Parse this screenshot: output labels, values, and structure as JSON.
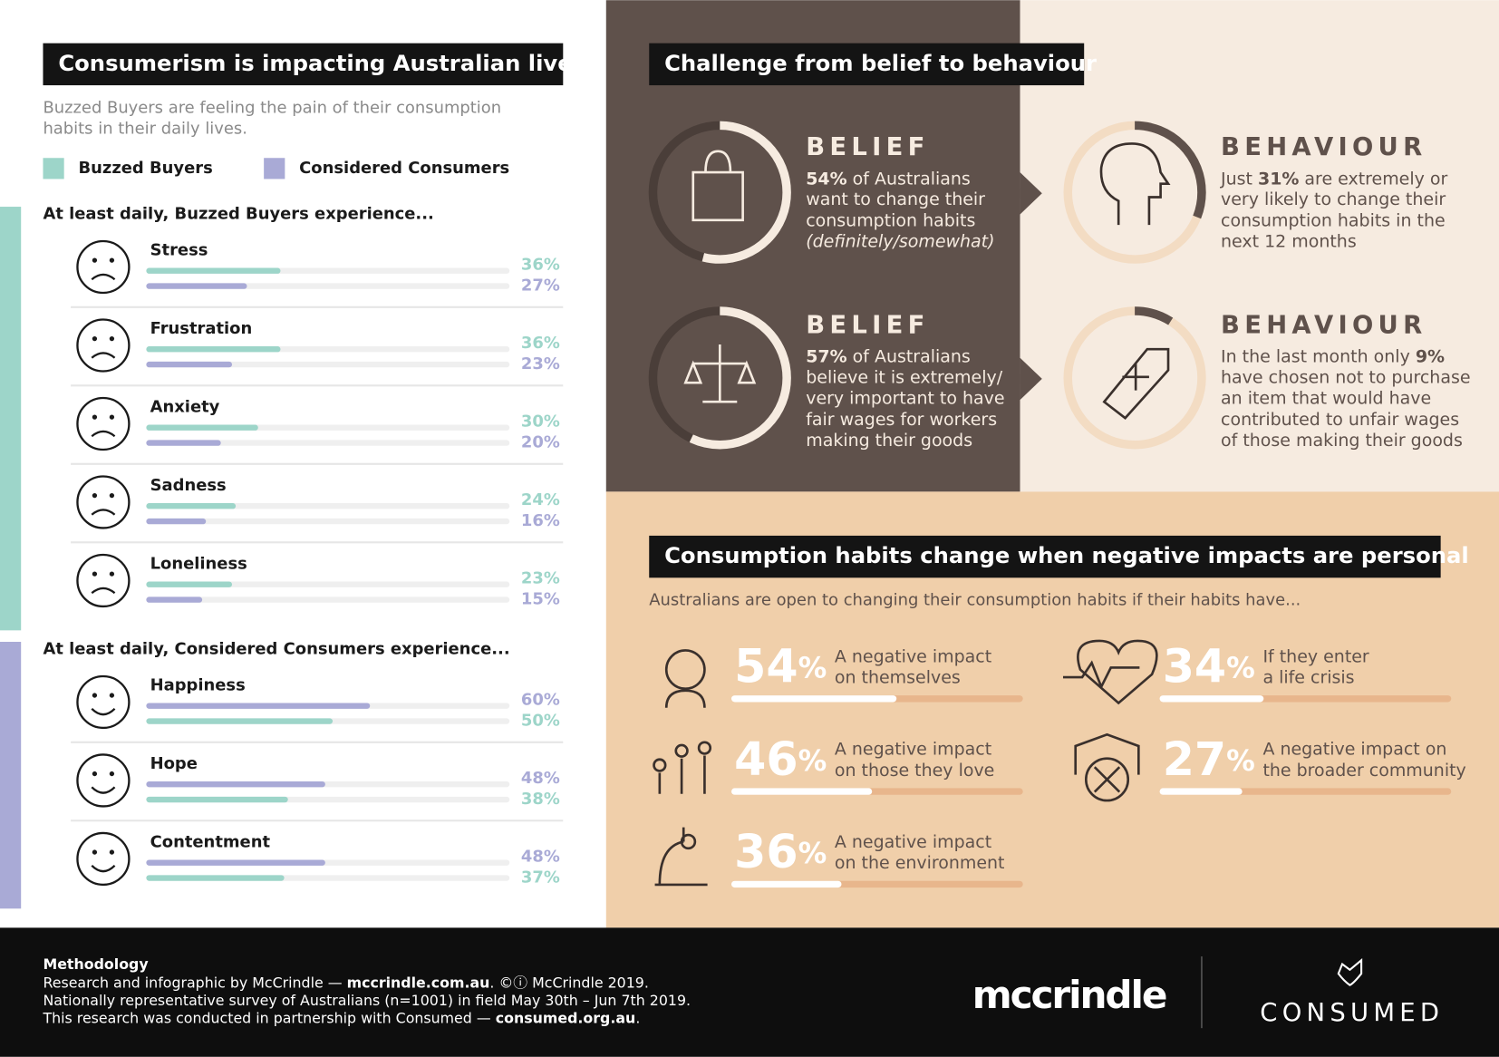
{
  "left": {
    "title": "Consumerism is impacting Australian lives",
    "subtitle": [
      "Buzzed Buyers are feeling the pain of their consumption",
      "habits in their daily lives."
    ],
    "legend": [
      {
        "name": "Buzzed Buyers",
        "color": "#9dd5c9"
      },
      {
        "name": "Considered Consumers",
        "color": "#a9aad6"
      }
    ],
    "sections": [
      {
        "heading": "At least daily, Buzzed Buyers experience...",
        "colors": [
          "#9dd5c9",
          "#a9aad6"
        ],
        "rows": [
          {
            "label": "Stress",
            "bars": [
              {
                "value": 36,
                "label": "36%"
              },
              {
                "value": 27,
                "label": "27%"
              }
            ]
          },
          {
            "label": "Frustration",
            "bars": [
              {
                "value": 36,
                "label": "36%"
              },
              {
                "value": 23,
                "label": "23%"
              }
            ]
          },
          {
            "label": "Anxiety",
            "bars": [
              {
                "value": 30,
                "label": "30%"
              },
              {
                "value": 20,
                "label": "20%"
              }
            ]
          },
          {
            "label": "Sadness",
            "bars": [
              {
                "value": 24,
                "label": "24%"
              },
              {
                "value": 16,
                "label": "16%"
              }
            ]
          },
          {
            "label": "Loneliness",
            "bars": [
              {
                "value": 23,
                "label": "23%"
              },
              {
                "value": 15,
                "label": "15%"
              }
            ]
          }
        ]
      },
      {
        "heading": "At least daily, Considered Consumers experience...",
        "colors": [
          "#a9aad6",
          "#9dd5c9"
        ],
        "rows": [
          {
            "label": "Happiness",
            "bars": [
              {
                "value": 60,
                "label": "60%"
              },
              {
                "value": 50,
                "label": "50%"
              }
            ]
          },
          {
            "label": "Hope",
            "bars": [
              {
                "value": 48,
                "label": "48%"
              },
              {
                "value": 38,
                "label": "38%"
              }
            ]
          },
          {
            "label": "Contentment",
            "bars": [
              {
                "value": 48,
                "label": "48%"
              },
              {
                "value": 37,
                "label": "37%"
              }
            ]
          }
        ]
      }
    ]
  },
  "challenge": {
    "title": "Challenge from belief to behaviour",
    "items": [
      {
        "heading": "BELIEF",
        "value": 54,
        "highlight": "54%",
        "tail": " of Australians",
        "lines": [
          "want to change their",
          "consumption habits"
        ],
        "note": "(definitely/somewhat)"
      },
      {
        "heading": "BEHAVIOUR",
        "value": 31,
        "lead": "Just ",
        "highlight": "31%",
        "tail": " are extremely or",
        "lines": [
          "very likely to change their",
          "consumption habits in the",
          "next 12 months"
        ]
      },
      {
        "heading": "BELIEF",
        "value": 57,
        "highlight": "57%",
        "tail": " of Australians",
        "lines": [
          "believe it is extremely/",
          "very important to have",
          "fair wages for workers",
          "making their goods"
        ]
      },
      {
        "heading": "BEHAVIOUR",
        "value": 9,
        "lead": "In the last month only ",
        "highlight": "9%",
        "lines": [
          "have chosen not to purchase",
          "an item that would have",
          "contributed to unfair wages",
          "of those making their goods"
        ]
      }
    ]
  },
  "personal": {
    "title": "Consumption habits change when negative impacts are personal",
    "subtitle": "Australians are open to changing their consumption habits if their habits have...",
    "items": [
      {
        "value": 54,
        "unit": "%",
        "lines": [
          "A negative impact",
          "on themselves"
        ]
      },
      {
        "value": 34,
        "unit": "%",
        "lines": [
          "If they enter",
          "a life crisis"
        ]
      },
      {
        "value": 46,
        "unit": "%",
        "lines": [
          "A negative impact",
          "on those they love"
        ]
      },
      {
        "value": 27,
        "unit": "%",
        "lines": [
          "A negative impact on",
          "the broader community"
        ]
      },
      {
        "value": 36,
        "unit": "%",
        "lines": [
          "A negative impact",
          "on the environment"
        ]
      }
    ]
  },
  "footer": {
    "heading": "Methodology",
    "lines": [
      {
        "text": "Research and infographic by McCrindle — ",
        "bold": "mccrindle.com.au",
        "after": ". ©ⓘ McCrindle 2019."
      },
      {
        "text": "Nationally representative survey of Australians (n=1001) in field May 30th – Jun 7th 2019."
      },
      {
        "text": "This research was conducted in partnership with Consumed — ",
        "bold": "consumed.org.au",
        "after": "."
      }
    ],
    "logo_left": "mccrindle",
    "logo_right": "CONSUMED"
  }
}
